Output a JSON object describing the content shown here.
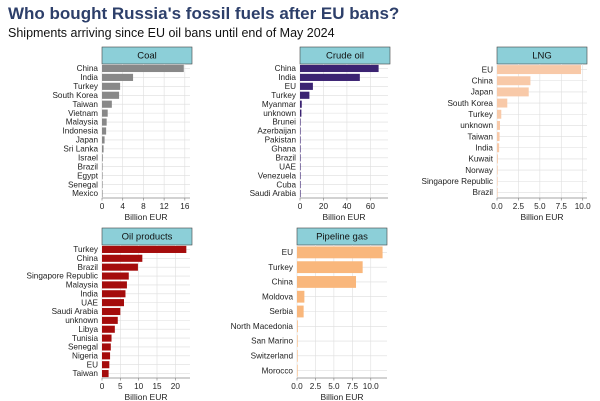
{
  "header": {
    "title": "Who bought Russia's fossil fuels after EU bans?",
    "subtitle": "Shipments arriving since EU oil bans until end of May 2024"
  },
  "colors": {
    "coal": "#888888",
    "crude_oil": "#3b2372",
    "lng": "#f8c9a8",
    "oil_products": "#a50c0c",
    "pipeline_gas": "#f9b77c",
    "strip": "#8ccfd8"
  },
  "chart_data": [
    {
      "id": "coal",
      "type": "bar",
      "title": "Coal",
      "xlabel": "Billion EUR",
      "xlim": [
        0,
        17
      ],
      "xticks": [
        0,
        4,
        8,
        12,
        16
      ],
      "categories": [
        "China",
        "India",
        "Turkey",
        "South Korea",
        "Taiwan",
        "Vietnam",
        "Malaysia",
        "Indonesia",
        "Japan",
        "Sri Lanka",
        "Israel",
        "Brazil",
        "Egypt",
        "Senegal",
        "Mexico"
      ],
      "values": [
        15.8,
        6.0,
        3.5,
        3.3,
        1.9,
        1.1,
        0.9,
        0.8,
        0.5,
        0.3,
        0.15,
        0.1,
        0.08,
        0.06,
        0.05
      ]
    },
    {
      "id": "crude_oil",
      "type": "bar",
      "title": "Crude oil",
      "xlabel": "Billion EUR",
      "xlim": [
        0,
        75
      ],
      "xticks": [
        0,
        20,
        40,
        60
      ],
      "categories": [
        "China",
        "India",
        "EU",
        "Turkey",
        "Myanmar",
        "unknown",
        "Brunei",
        "Azerbaijan",
        "Pakistan",
        "Ghana",
        "Brazil",
        "UAE",
        "Venezuela",
        "Cuba",
        "Saudi Arabia"
      ],
      "values": [
        67,
        51,
        11,
        8,
        1.5,
        1.2,
        0.5,
        0.4,
        0.3,
        0.2,
        0.2,
        0.15,
        0.1,
        0.1,
        0.1
      ]
    },
    {
      "id": "lng",
      "type": "bar",
      "title": "LNG",
      "xlabel": "Billion EUR",
      "xlim": [
        0,
        10.5
      ],
      "xticks": [
        0,
        2.5,
        5,
        7.5,
        10
      ],
      "xtick_labels": [
        "0.0",
        "2.5",
        "5.0",
        "7.5",
        "10.0"
      ],
      "categories": [
        "EU",
        "China",
        "Japan",
        "South Korea",
        "Turkey",
        "unknown",
        "Taiwan",
        "India",
        "Kuwait",
        "Norway",
        "Singapore Republic",
        "Brazil"
      ],
      "values": [
        9.8,
        3.9,
        3.7,
        1.2,
        0.5,
        0.35,
        0.3,
        0.25,
        0.1,
        0.08,
        0.05,
        0.05
      ]
    },
    {
      "id": "oil_products",
      "type": "bar",
      "title": "Oil products",
      "xlabel": "Billion EUR",
      "xlim": [
        0,
        24
      ],
      "xticks": [
        0,
        5,
        10,
        15,
        20
      ],
      "categories": [
        "Turkey",
        "China",
        "Brazil",
        "Singapore Republic",
        "Malaysia",
        "India",
        "UAE",
        "Saudi Arabia",
        "unknown",
        "Libya",
        "Tunisia",
        "Senegal",
        "Nigeria",
        "EU",
        "Taiwan"
      ],
      "values": [
        23,
        11,
        9.8,
        7.3,
        6.8,
        6.4,
        6.0,
        5.0,
        4.3,
        3.5,
        2.6,
        2.4,
        2.2,
        2.0,
        1.8
      ]
    },
    {
      "id": "pipeline_gas",
      "type": "bar",
      "title": "Pipeline gas",
      "xlabel": "Billion EUR",
      "xlim": [
        0,
        12.2
      ],
      "xticks": [
        0,
        2.5,
        5,
        7.5,
        10
      ],
      "xtick_labels": [
        "0.0",
        "2.5",
        "5.0",
        "7.5",
        "10.0"
      ],
      "categories": [
        "EU",
        "Turkey",
        "China",
        "Moldova",
        "Serbia",
        "North Macedonia",
        "San Marino",
        "Switzerland",
        "Morocco"
      ],
      "values": [
        11.6,
        8.9,
        8.0,
        1.0,
        0.9,
        0.1,
        0.05,
        0.05,
        0.05
      ]
    }
  ]
}
